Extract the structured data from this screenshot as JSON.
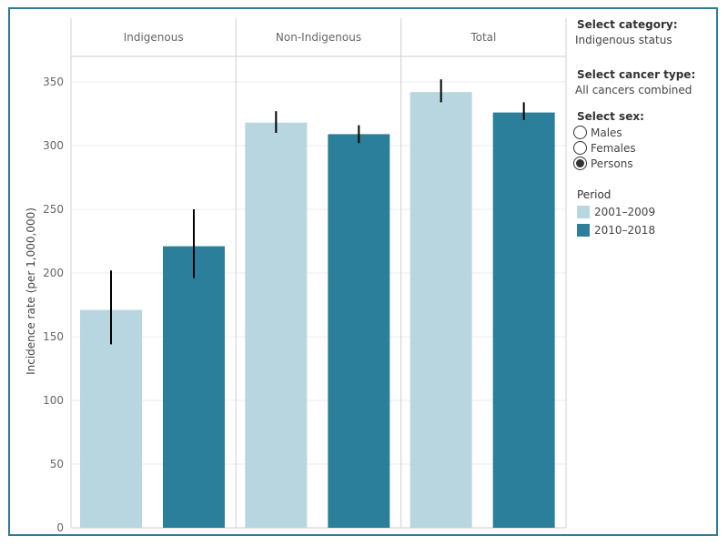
{
  "chart_data": {
    "type": "bar",
    "facets": [
      "Indigenous",
      "Non-Indigenous",
      "Total"
    ],
    "ylabel": "Incidence rate (per 1,000,000)",
    "ylim": [
      0,
      370
    ],
    "yticks": [
      0,
      50,
      100,
      150,
      200,
      250,
      300,
      350
    ],
    "grid": true,
    "error_bars": true,
    "series": [
      {
        "name": "2001–2009",
        "color": "#b7d6e0",
        "values": [
          171,
          318,
          342
        ],
        "lower": [
          144,
          310,
          334
        ],
        "upper": [
          202,
          327,
          352
        ]
      },
      {
        "name": "2010–2018",
        "color": "#2c7f9b",
        "values": [
          221,
          309,
          326
        ],
        "lower": [
          196,
          302,
          320
        ],
        "upper": [
          250,
          316,
          334
        ]
      }
    ]
  },
  "controls": {
    "category_title": "Select category:",
    "category_value": "Indigenous status",
    "cancer_title": "Select cancer type:",
    "cancer_value": "All cancers combined",
    "sex_title": "Select sex:",
    "sex_options": [
      "Males",
      "Females",
      "Persons"
    ],
    "sex_selected": "Persons"
  },
  "legend": {
    "title": "Period",
    "items": [
      {
        "label": "2001–2009",
        "color": "#b7d6e0"
      },
      {
        "label": "2010–2018",
        "color": "#2c7f9b"
      }
    ]
  }
}
